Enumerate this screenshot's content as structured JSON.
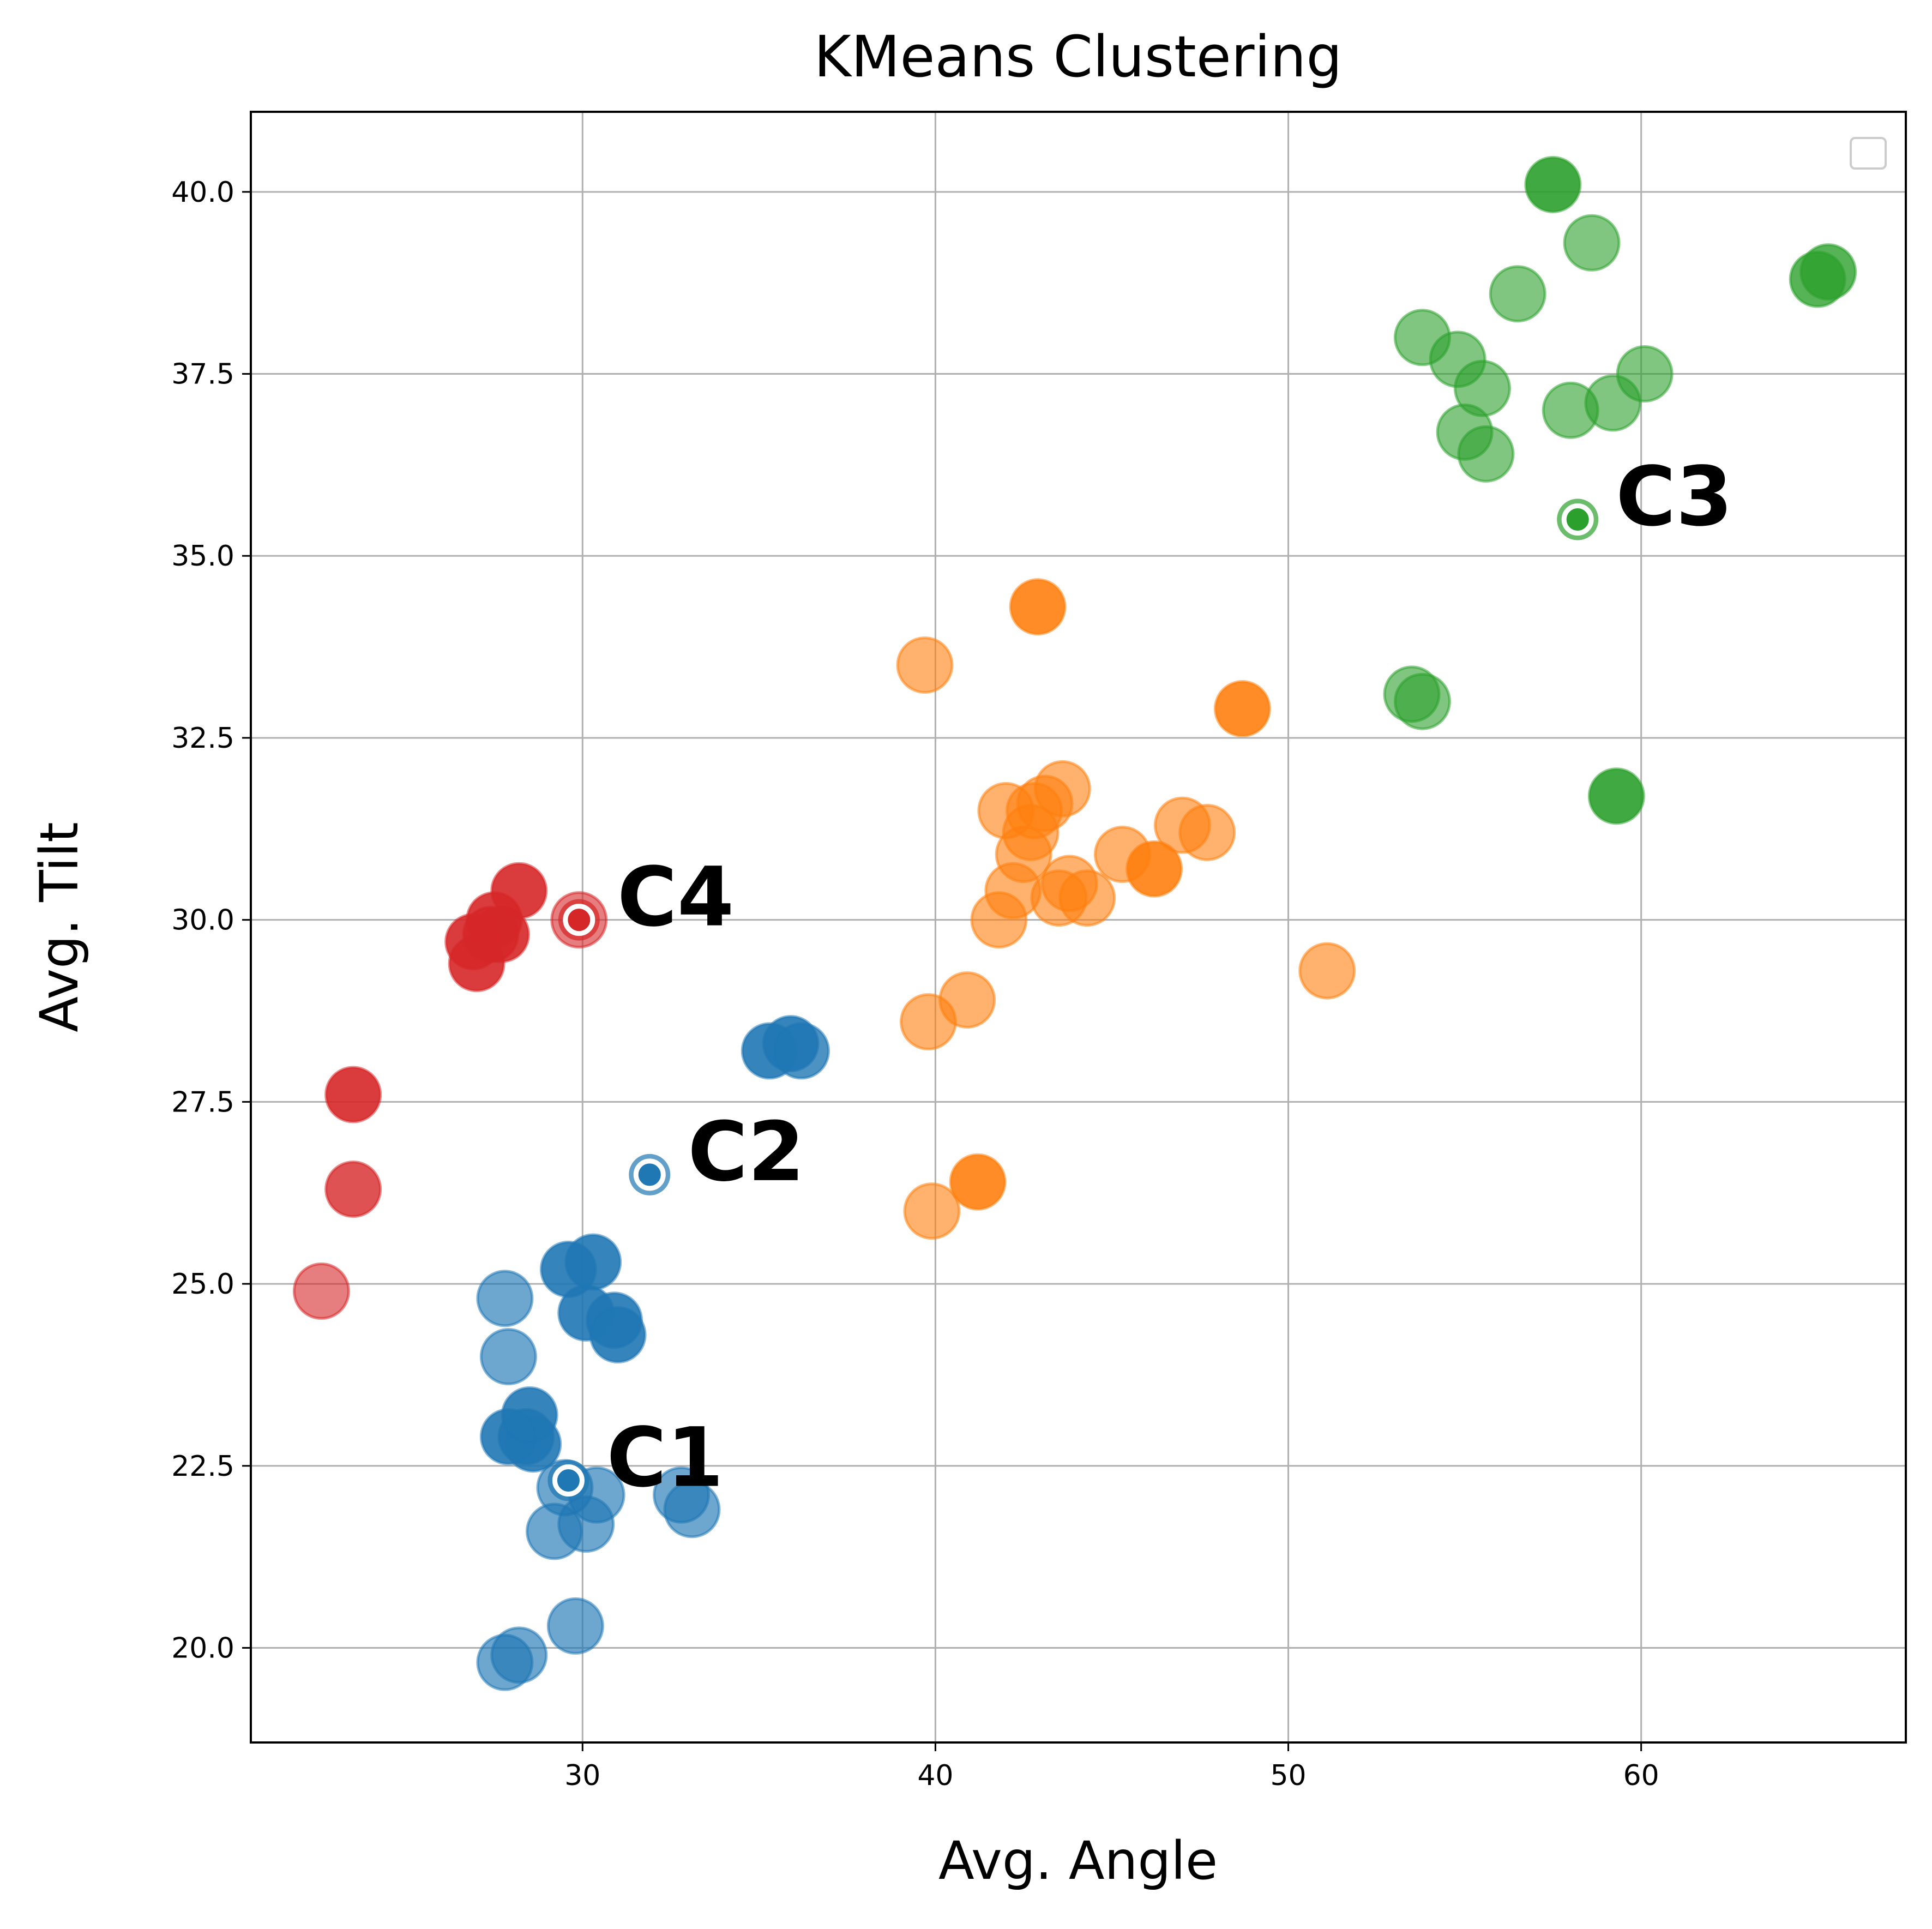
{
  "chart_data": {
    "type": "scatter",
    "title": "KMeans Clustering",
    "xlabel": "Avg. Angle",
    "ylabel": "Avg. Tilt",
    "xlim": [
      20.6,
      67.5
    ],
    "ylim": [
      18.7,
      41.1
    ],
    "xticks": [
      30,
      40,
      50,
      60
    ],
    "xtick_labels": [
      "30",
      "40",
      "50",
      "60"
    ],
    "yticks": [
      20.0,
      22.5,
      25.0,
      27.5,
      30.0,
      32.5,
      35.0,
      37.5,
      40.0
    ],
    "ytick_labels": [
      "20.0",
      "22.5",
      "25.0",
      "27.5",
      "30.0",
      "32.5",
      "35.0",
      "37.5",
      "40.0"
    ],
    "grid": true,
    "legend": {
      "placement": "upper right",
      "entries": []
    },
    "colors": {
      "c1": "#1f77b4",
      "c2": "#ff7f0e",
      "c3": "#2ca02c",
      "c4": "#d62728"
    },
    "clusters": [
      {
        "color": "#1f77b4",
        "points": [
          [
            27.8,
            19.8,
            0.65
          ],
          [
            28.2,
            19.9,
            0.65
          ],
          [
            29.8,
            20.3,
            0.65
          ],
          [
            29.2,
            21.6,
            0.65
          ],
          [
            30.1,
            21.7,
            0.65
          ],
          [
            30.4,
            22.1,
            0.65
          ],
          [
            33.1,
            21.9,
            0.65
          ],
          [
            32.8,
            22.1,
            0.65
          ],
          [
            29.5,
            22.2,
            0.65
          ],
          [
            28.6,
            22.8,
            0.9
          ],
          [
            28.4,
            22.9,
            0.9
          ],
          [
            27.9,
            22.9,
            0.9
          ],
          [
            28.5,
            23.2,
            0.9
          ],
          [
            27.9,
            24.0,
            0.65
          ],
          [
            27.8,
            24.8,
            0.65
          ],
          [
            30.1,
            24.6,
            0.9
          ],
          [
            30.9,
            24.5,
            0.9
          ],
          [
            31.0,
            24.3,
            0.9
          ],
          [
            29.6,
            25.2,
            0.9
          ],
          [
            30.3,
            25.3,
            0.9
          ],
          [
            35.3,
            28.2,
            0.9
          ],
          [
            35.9,
            28.3,
            0.9
          ],
          [
            36.2,
            28.2,
            0.8
          ]
        ]
      },
      {
        "color": "#ff7f0e",
        "points": [
          [
            39.9,
            26.0,
            0.6
          ],
          [
            41.2,
            26.4,
            0.9
          ],
          [
            39.8,
            28.6,
            0.6
          ],
          [
            40.9,
            28.9,
            0.6
          ],
          [
            51.1,
            29.3,
            0.6
          ],
          [
            41.8,
            30.0,
            0.6
          ],
          [
            42.2,
            30.4,
            0.6
          ],
          [
            43.5,
            30.3,
            0.6
          ],
          [
            44.3,
            30.3,
            0.6
          ],
          [
            43.8,
            30.5,
            0.6
          ],
          [
            46.2,
            30.7,
            0.9
          ],
          [
            45.3,
            30.9,
            0.6
          ],
          [
            42.5,
            30.9,
            0.6
          ],
          [
            42.7,
            31.2,
            0.6
          ],
          [
            47.0,
            31.3,
            0.6
          ],
          [
            47.7,
            31.2,
            0.6
          ],
          [
            42.0,
            31.5,
            0.6
          ],
          [
            42.8,
            31.5,
            0.6
          ],
          [
            43.1,
            31.6,
            0.6
          ],
          [
            43.6,
            31.8,
            0.6
          ],
          [
            48.7,
            32.9,
            0.9
          ],
          [
            39.7,
            33.5,
            0.6
          ],
          [
            42.9,
            34.3,
            0.9
          ]
        ]
      },
      {
        "color": "#2ca02c",
        "points": [
          [
            59.3,
            31.7,
            0.9
          ],
          [
            53.5,
            33.1,
            0.6
          ],
          [
            53.8,
            33.0,
            0.6
          ],
          [
            55.6,
            36.4,
            0.6
          ],
          [
            55.0,
            36.7,
            0.6
          ],
          [
            58.0,
            37.0,
            0.6
          ],
          [
            59.2,
            37.1,
            0.6
          ],
          [
            55.5,
            37.3,
            0.6
          ],
          [
            60.1,
            37.5,
            0.6
          ],
          [
            54.8,
            37.7,
            0.6
          ],
          [
            53.8,
            38.0,
            0.6
          ],
          [
            56.5,
            38.6,
            0.6
          ],
          [
            58.6,
            39.3,
            0.6
          ],
          [
            65.0,
            38.8,
            0.8
          ],
          [
            65.3,
            38.9,
            0.8
          ],
          [
            57.5,
            40.1,
            0.9
          ]
        ]
      },
      {
        "color": "#d62728",
        "points": [
          [
            22.6,
            24.9,
            0.6
          ],
          [
            23.5,
            26.3,
            0.8
          ],
          [
            23.5,
            27.6,
            0.9
          ],
          [
            27.0,
            29.4,
            0.9
          ],
          [
            26.9,
            29.7,
            0.9
          ],
          [
            27.4,
            29.8,
            0.9
          ],
          [
            27.7,
            29.8,
            0.9
          ],
          [
            27.5,
            30.0,
            0.9
          ],
          [
            28.2,
            30.4,
            0.9
          ],
          [
            29.9,
            30.0,
            0.6
          ]
        ]
      }
    ],
    "centroids": [
      {
        "label": "C1",
        "x": 29.6,
        "y": 22.3,
        "color": "#1f77b4"
      },
      {
        "label": "C2",
        "x": 31.9,
        "y": 26.5,
        "color": "#1f77b4"
      },
      {
        "label": "C3",
        "x": 58.2,
        "y": 35.5,
        "color": "#2ca02c"
      },
      {
        "label": "C4",
        "x": 29.9,
        "y": 30.0,
        "color": "#d62728"
      }
    ]
  }
}
